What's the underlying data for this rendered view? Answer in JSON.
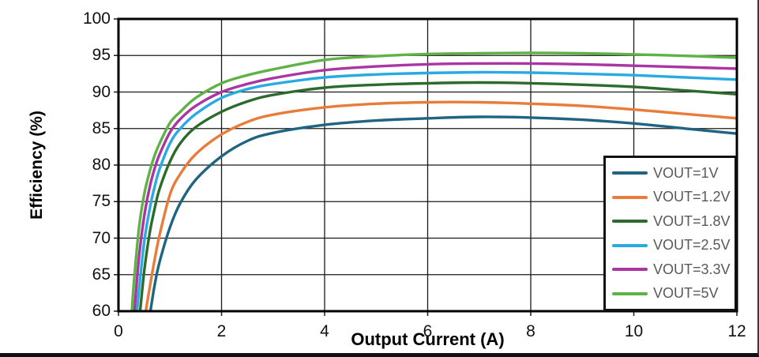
{
  "styles": {
    "grid_color": "#1a1a1a",
    "plot_border_color": "#000000",
    "legend_text_color": "#58595B",
    "tick_label_color": "#111111"
  },
  "chart_data": {
    "type": "line",
    "title": "",
    "xlabel": "Output Current (A)",
    "ylabel": "Efficiency (%)",
    "xlim": [
      0,
      12
    ],
    "ylim": [
      60,
      100
    ],
    "xticks": [
      0,
      2,
      4,
      6,
      8,
      10,
      12
    ],
    "yticks": [
      60,
      65,
      70,
      75,
      80,
      85,
      90,
      95,
      100
    ],
    "grid": true,
    "legend_position": "lower right",
    "series": [
      {
        "name": "VOUT=1V",
        "color": "#1F6480",
        "x": [
          0.62,
          0.7,
          0.8,
          1,
          1.2,
          1.5,
          2,
          2.5,
          3,
          4,
          5,
          6,
          7,
          8,
          9,
          10,
          11,
          12
        ],
        "y": [
          60,
          63.5,
          66.8,
          71.5,
          74.8,
          78,
          81.2,
          83.3,
          84.4,
          85.5,
          86.1,
          86.4,
          86.6,
          86.5,
          86.2,
          85.7,
          85,
          84.3
        ]
      },
      {
        "name": "VOUT=1.2V",
        "color": "#E87D3B",
        "x": [
          0.53,
          0.6,
          0.7,
          0.8,
          1,
          1.2,
          1.5,
          2,
          2.5,
          3,
          4,
          5,
          6,
          7,
          8,
          9,
          10,
          11,
          12
        ],
        "y": [
          60,
          63,
          67,
          70.5,
          76,
          78.8,
          81.5,
          84.2,
          85.9,
          86.9,
          87.9,
          88.4,
          88.6,
          88.6,
          88.4,
          88.1,
          87.6,
          87,
          86.4
        ]
      },
      {
        "name": "VOUT=1.8V",
        "color": "#2D6B2D",
        "x": [
          0.42,
          0.5,
          0.6,
          0.7,
          0.8,
          1,
          1.2,
          1.5,
          2,
          2.5,
          3,
          4,
          5,
          6,
          7,
          8,
          9,
          10,
          11,
          12
        ],
        "y": [
          60,
          65.5,
          70.5,
          74,
          76.8,
          80.5,
          83,
          85.2,
          87.3,
          88.7,
          89.6,
          90.6,
          91,
          91.2,
          91.3,
          91.2,
          91,
          90.7,
          90.2,
          89.7
        ]
      },
      {
        "name": "VOUT=2.5V",
        "color": "#29ABE2",
        "x": [
          0.36,
          0.4,
          0.5,
          0.6,
          0.7,
          0.8,
          1,
          1.2,
          1.5,
          2,
          2.5,
          3,
          4,
          5,
          6,
          7,
          8,
          9,
          10,
          11,
          12
        ],
        "y": [
          60,
          63,
          69.5,
          73.8,
          77,
          79.5,
          83,
          85,
          87,
          89.2,
          90.4,
          91.1,
          92,
          92.4,
          92.6,
          92.7,
          92.65,
          92.5,
          92.3,
          92,
          91.7
        ]
      },
      {
        "name": "VOUT=3.3V",
        "color": "#A936A3",
        "x": [
          0.31,
          0.4,
          0.5,
          0.6,
          0.7,
          0.8,
          1,
          1.2,
          1.5,
          2,
          2.5,
          3,
          4,
          5,
          6,
          7,
          8,
          9,
          10,
          11,
          12
        ],
        "y": [
          60,
          67.5,
          73,
          76.8,
          79.5,
          81.5,
          84.5,
          86.3,
          88.1,
          90,
          91.1,
          91.9,
          93,
          93.5,
          93.8,
          93.9,
          93.9,
          93.8,
          93.6,
          93.4,
          93.2
        ]
      },
      {
        "name": "VOUT=5V",
        "color": "#5FB245",
        "x": [
          0.26,
          0.3,
          0.4,
          0.5,
          0.6,
          0.7,
          0.8,
          1,
          1.2,
          1.5,
          2,
          2.5,
          3,
          4,
          5,
          6,
          7,
          8,
          9,
          10,
          11,
          12
        ],
        "y": [
          60,
          64,
          71.5,
          76,
          79,
          81.3,
          83,
          85.8,
          87.3,
          89.2,
          91.2,
          92.3,
          93.1,
          94.4,
          94.9,
          95.2,
          95.3,
          95.35,
          95.3,
          95.15,
          94.95,
          94.7
        ]
      }
    ]
  }
}
